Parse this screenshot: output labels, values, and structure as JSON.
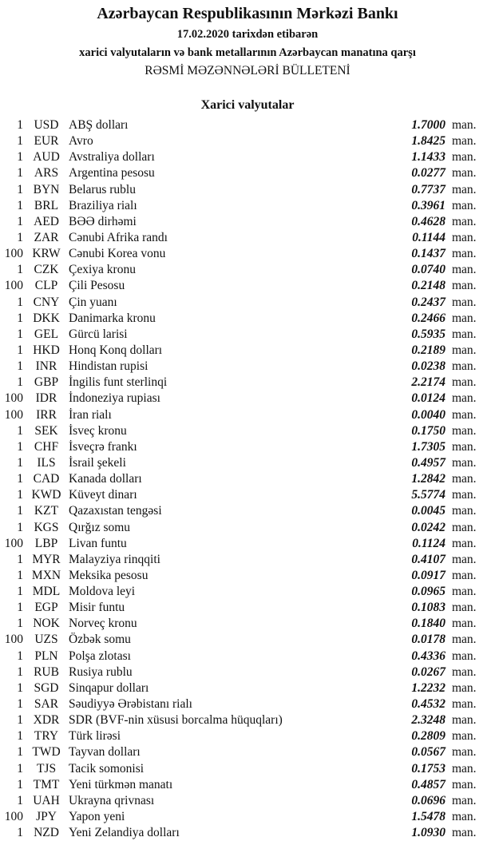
{
  "header": {
    "title": "Azərbaycan Respublikasının Mərkəzi Bankı",
    "date_line": "17.02.2020 tarixdən etibarən",
    "subtitle": "xarici valyutaların və bank metallarının Azərbaycan manatına qarşı",
    "bulletin": "RƏSMİ MƏZƏNNƏLƏRİ BÜLLETENİ"
  },
  "section": {
    "title": "Xarici valyutalar",
    "unit": "man.",
    "rows": [
      {
        "amount": "1",
        "code": "USD",
        "name": "ABŞ dolları",
        "rate": "1.7000"
      },
      {
        "amount": "1",
        "code": "EUR",
        "name": "Avro",
        "rate": "1.8425"
      },
      {
        "amount": "1",
        "code": "AUD",
        "name": "Avstraliya dolları",
        "rate": "1.1433"
      },
      {
        "amount": "1",
        "code": "ARS",
        "name": "Argentina pesosu",
        "rate": "0.0277"
      },
      {
        "amount": "1",
        "code": "BYN",
        "name": "Belarus rublu",
        "rate": "0.7737"
      },
      {
        "amount": "1",
        "code": "BRL",
        "name": "Braziliya rialı",
        "rate": "0.3961"
      },
      {
        "amount": "1",
        "code": "AED",
        "name": "BƏƏ dirhəmi",
        "rate": "0.4628"
      },
      {
        "amount": "1",
        "code": "ZAR",
        "name": "Cənubi Afrika randı",
        "rate": "0.1144"
      },
      {
        "amount": "100",
        "code": "KRW",
        "name": "Cənubi Korea vonu",
        "rate": "0.1437"
      },
      {
        "amount": "1",
        "code": "CZK",
        "name": "Çexiya kronu",
        "rate": "0.0740"
      },
      {
        "amount": "100",
        "code": "CLP",
        "name": "Çili Pesosu",
        "rate": "0.2148"
      },
      {
        "amount": "1",
        "code": "CNY",
        "name": "Çin yuanı",
        "rate": "0.2437"
      },
      {
        "amount": "1",
        "code": "DKK",
        "name": "Danimarka kronu",
        "rate": "0.2466"
      },
      {
        "amount": "1",
        "code": "GEL",
        "name": "Gürcü larisi",
        "rate": "0.5935"
      },
      {
        "amount": "1",
        "code": "HKD",
        "name": "Honq Konq dolları",
        "rate": "0.2189"
      },
      {
        "amount": "1",
        "code": "INR",
        "name": "Hindistan rupisi",
        "rate": "0.0238"
      },
      {
        "amount": "1",
        "code": "GBP",
        "name": "İngilis funt sterlinqi",
        "rate": "2.2174"
      },
      {
        "amount": "100",
        "code": "IDR",
        "name": "İndoneziya rupiası",
        "rate": "0.0124"
      },
      {
        "amount": "100",
        "code": "IRR",
        "name": "İran rialı",
        "rate": "0.0040"
      },
      {
        "amount": "1",
        "code": "SEK",
        "name": "İsveç kronu",
        "rate": "0.1750"
      },
      {
        "amount": "1",
        "code": "CHF",
        "name": "İsveçrə frankı",
        "rate": "1.7305"
      },
      {
        "amount": "1",
        "code": "ILS",
        "name": "İsrail şekeli",
        "rate": "0.4957"
      },
      {
        "amount": "1",
        "code": "CAD",
        "name": "Kanada dolları",
        "rate": "1.2842"
      },
      {
        "amount": "1",
        "code": "KWD",
        "name": "Küveyt dinarı",
        "rate": "5.5774"
      },
      {
        "amount": "1",
        "code": "KZT",
        "name": "Qazaxıstan tengəsi",
        "rate": "0.0045"
      },
      {
        "amount": "1",
        "code": "KGS",
        "name": "Qırğız somu",
        "rate": "0.0242"
      },
      {
        "amount": "100",
        "code": "LBP",
        "name": "Livan funtu",
        "rate": "0.1124"
      },
      {
        "amount": "1",
        "code": "MYR",
        "name": "Malayziya rinqqiti",
        "rate": "0.4107"
      },
      {
        "amount": "1",
        "code": "MXN",
        "name": "Meksika pesosu",
        "rate": "0.0917"
      },
      {
        "amount": "1",
        "code": "MDL",
        "name": "Moldova leyi",
        "rate": "0.0965"
      },
      {
        "amount": "1",
        "code": "EGP",
        "name": "Misir funtu",
        "rate": "0.1083"
      },
      {
        "amount": "1",
        "code": "NOK",
        "name": "Norveç kronu",
        "rate": "0.1840"
      },
      {
        "amount": "100",
        "code": "UZS",
        "name": "Özbək somu",
        "rate": "0.0178"
      },
      {
        "amount": "1",
        "code": "PLN",
        "name": "Polşa zlotası",
        "rate": "0.4336"
      },
      {
        "amount": "1",
        "code": "RUB",
        "name": "Rusiya rublu",
        "rate": "0.0267"
      },
      {
        "amount": "1",
        "code": "SGD",
        "name": "Sinqapur dolları",
        "rate": "1.2232"
      },
      {
        "amount": "1",
        "code": "SAR",
        "name": "Səudiyyə Ərəbistanı rialı",
        "rate": "0.4532"
      },
      {
        "amount": "1",
        "code": "XDR",
        "name": "SDR (BVF-nin xüsusi borcalma hüquqları)",
        "rate": "2.3248"
      },
      {
        "amount": "1",
        "code": "TRY",
        "name": "Türk lirəsi",
        "rate": "0.2809"
      },
      {
        "amount": "1",
        "code": "TWD",
        "name": "Tayvan dolları",
        "rate": "0.0567"
      },
      {
        "amount": "1",
        "code": "TJS",
        "name": "Tacik somonisi",
        "rate": "0.1753"
      },
      {
        "amount": "1",
        "code": "TMT",
        "name": "Yeni türkmən manatı",
        "rate": "0.4857"
      },
      {
        "amount": "1",
        "code": "UAH",
        "name": "Ukrayna qrivnası",
        "rate": "0.0696"
      },
      {
        "amount": "100",
        "code": "JPY",
        "name": "Yapon yeni",
        "rate": "1.5478"
      },
      {
        "amount": "1",
        "code": "NZD",
        "name": "Yeni Zelandiya dolları",
        "rate": "1.0930"
      }
    ]
  }
}
